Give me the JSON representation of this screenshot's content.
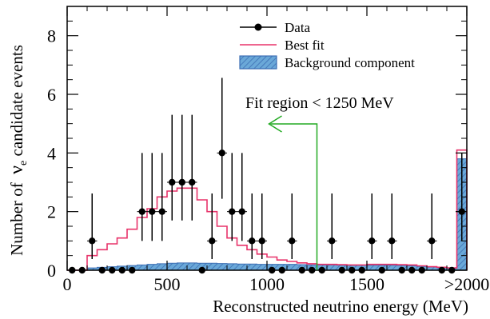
{
  "chart_data": {
    "type": "histogram",
    "xlabel": "Reconstructed neutrino energy (MeV)",
    "ylabel_prefix": "Number of  ",
    "ylabel_symbol": "ν",
    "ylabel_subscript": "e",
    "ylabel_suffix": " candidate events",
    "xlim": [
      0,
      2000
    ],
    "ylim": [
      0,
      9
    ],
    "x_ticks": [
      0,
      500,
      1000,
      1500,
      2000
    ],
    "x_tick_labels": [
      "0",
      "500",
      "1000",
      "1500",
      ">2000"
    ],
    "y_ticks": [
      0,
      2,
      4,
      6,
      8
    ],
    "y_tick_labels": [
      "0",
      "2",
      "4",
      "6",
      "8"
    ],
    "grid": false,
    "legend_position": "top-right",
    "legend": {
      "data": "Data",
      "best_fit": "Best fit",
      "background": "Background component"
    },
    "annotation": {
      "text": "Fit region < 1250 MeV",
      "color": "#22aa22",
      "boundary_x": 1250
    },
    "colors": {
      "data": "#000000",
      "best_fit": "#e8336a",
      "background_fill": "#6aa8d8",
      "background_edge": "#3c6eb4",
      "annotation": "#22aa22"
    },
    "data_points": {
      "x": [
        25,
        75,
        125,
        175,
        225,
        275,
        325,
        375,
        425,
        475,
        525,
        575,
        625,
        675,
        725,
        775,
        825,
        875,
        925,
        975,
        1025,
        1075,
        1125,
        1175,
        1225,
        1275,
        1325,
        1375,
        1425,
        1475,
        1525,
        1575,
        1625,
        1675,
        1725,
        1775,
        1825,
        1875,
        1925,
        1975
      ],
      "y": [
        0,
        0,
        1,
        0,
        0,
        0,
        0,
        2,
        2,
        2,
        3,
        3,
        3,
        0,
        1,
        4,
        2,
        2,
        1,
        1,
        0,
        0,
        1,
        0,
        0,
        0,
        1,
        0,
        0,
        0,
        1,
        0,
        1,
        0,
        0,
        0,
        1,
        0,
        0,
        2
      ]
    },
    "best_fit": {
      "bin_edges": [
        0,
        50,
        100,
        150,
        200,
        250,
        300,
        350,
        400,
        450,
        500,
        550,
        600,
        650,
        700,
        750,
        800,
        850,
        900,
        950,
        1000,
        1050,
        1100,
        1150,
        1200,
        1250,
        1300,
        1350,
        1400,
        1450,
        1500,
        1550,
        1600,
        1650,
        1700,
        1750,
        1800,
        1850,
        1900,
        1950,
        2000
      ],
      "values": [
        0,
        0,
        0.5,
        0.7,
        0.9,
        1.1,
        1.4,
        1.8,
        2.1,
        2.5,
        2.7,
        2.8,
        2.8,
        2.4,
        2.0,
        1.5,
        1.1,
        0.85,
        0.7,
        0.55,
        0.45,
        0.35,
        0.3,
        0.25,
        0.22,
        0.2,
        0.2,
        0.19,
        0.18,
        0.18,
        0.2,
        0.2,
        0.2,
        0.19,
        0.18,
        0.15,
        0.12,
        0.1,
        0.08,
        4.1
      ]
    },
    "background": {
      "bin_edges": [
        0,
        50,
        100,
        150,
        200,
        250,
        300,
        350,
        400,
        450,
        500,
        550,
        600,
        650,
        700,
        750,
        800,
        850,
        900,
        950,
        1000,
        1050,
        1100,
        1150,
        1200,
        1250,
        1300,
        1350,
        1400,
        1450,
        1500,
        1550,
        1600,
        1650,
        1700,
        1750,
        1800,
        1850,
        1900,
        1950,
        2000
      ],
      "values": [
        0,
        0,
        0.08,
        0.1,
        0.12,
        0.14,
        0.16,
        0.18,
        0.2,
        0.22,
        0.24,
        0.25,
        0.25,
        0.24,
        0.24,
        0.23,
        0.22,
        0.21,
        0.21,
        0.2,
        0.2,
        0.2,
        0.2,
        0.19,
        0.18,
        0.18,
        0.18,
        0.17,
        0.17,
        0.17,
        0.17,
        0.17,
        0.17,
        0.16,
        0.15,
        0.13,
        0.11,
        0.09,
        0.07,
        3.8
      ]
    }
  }
}
